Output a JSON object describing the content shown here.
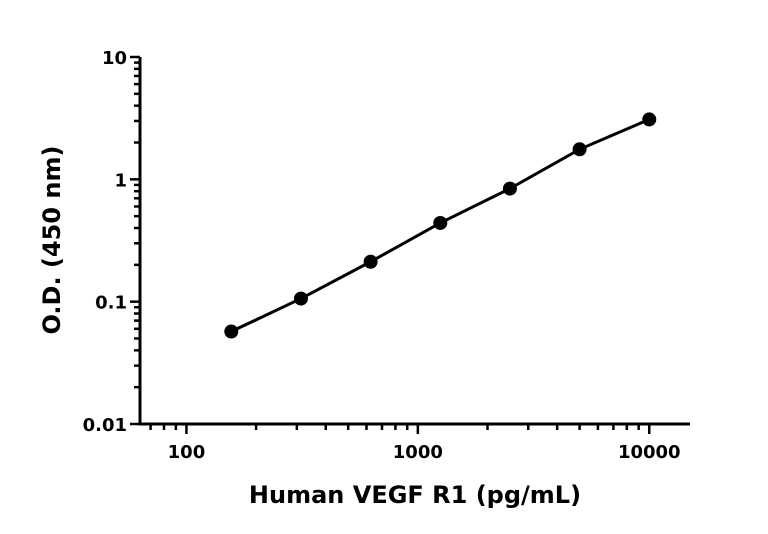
{
  "chart_data": {
    "type": "line",
    "title": "",
    "xlabel": "Human VEGF R1 (pg/mL)",
    "ylabel": "O.D. (450 nm)",
    "xscale": "log",
    "yscale": "log",
    "xlim": [
      63,
      15000
    ],
    "ylim": [
      0.01,
      10
    ],
    "xticks": [
      100,
      1000,
      10000
    ],
    "xtick_labels": [
      "100",
      "1000",
      "10000"
    ],
    "yticks": [
      0.01,
      0.1,
      1,
      10
    ],
    "ytick_labels": [
      "0.01",
      "0.1",
      "1",
      "10"
    ],
    "grid": false,
    "series": [
      {
        "x": [
          156.25,
          312.5,
          625,
          1250,
          2500,
          5000,
          10000
        ],
        "y": [
          0.057,
          0.106,
          0.212,
          0.44,
          0.84,
          1.76,
          3.09
        ],
        "color": "#000000",
        "marker": "circle"
      }
    ]
  }
}
